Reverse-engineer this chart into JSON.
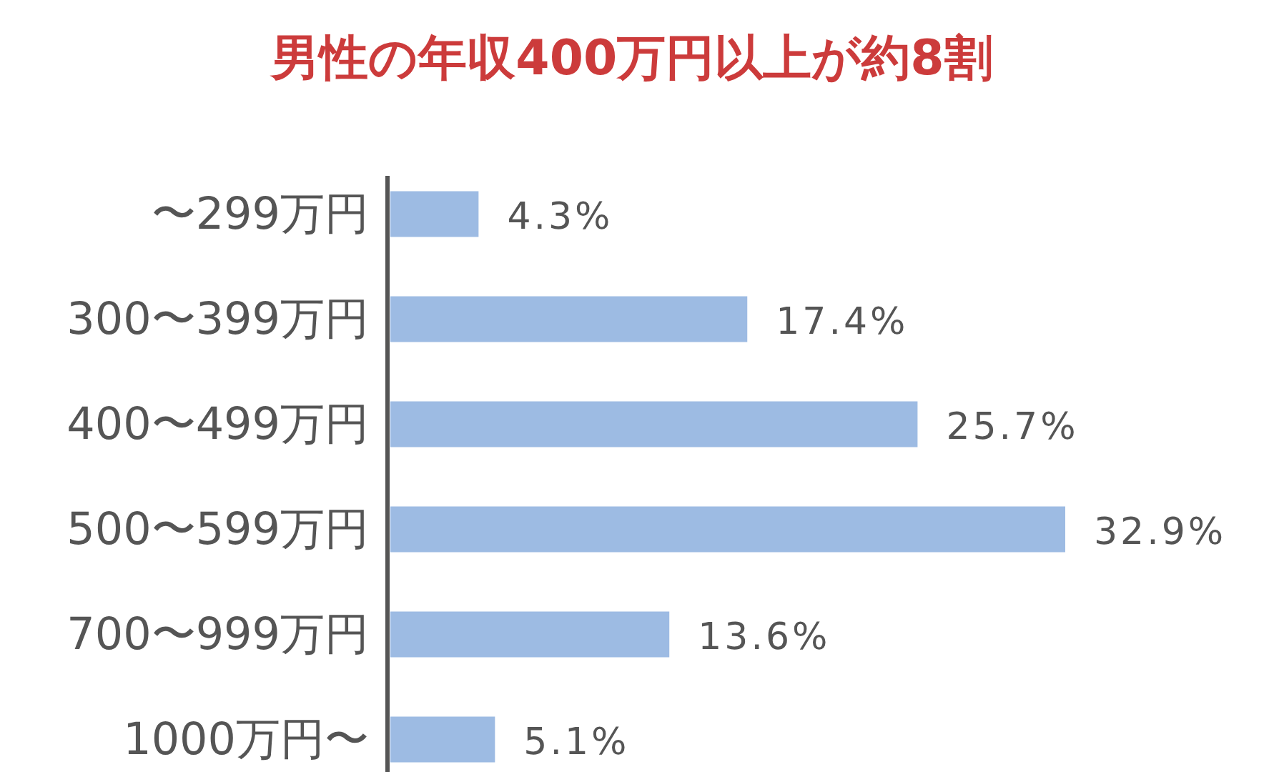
{
  "chart_data": {
    "type": "bar",
    "orientation": "horizontal",
    "title": "男性の年収400万円以上が約8割",
    "categories": [
      "〜299万円",
      "300〜399万円",
      "400〜499万円",
      "500〜599万円",
      "700〜999万円",
      "1000万円〜"
    ],
    "values": [
      4.3,
      17.4,
      25.7,
      32.9,
      13.6,
      5.1
    ],
    "value_labels": [
      "4.3%",
      "17.4%",
      "25.7%",
      "32.9%",
      "13.6%",
      "5.1%"
    ],
    "color": "#9dbbe3",
    "xlim": [
      0,
      32.9
    ]
  }
}
